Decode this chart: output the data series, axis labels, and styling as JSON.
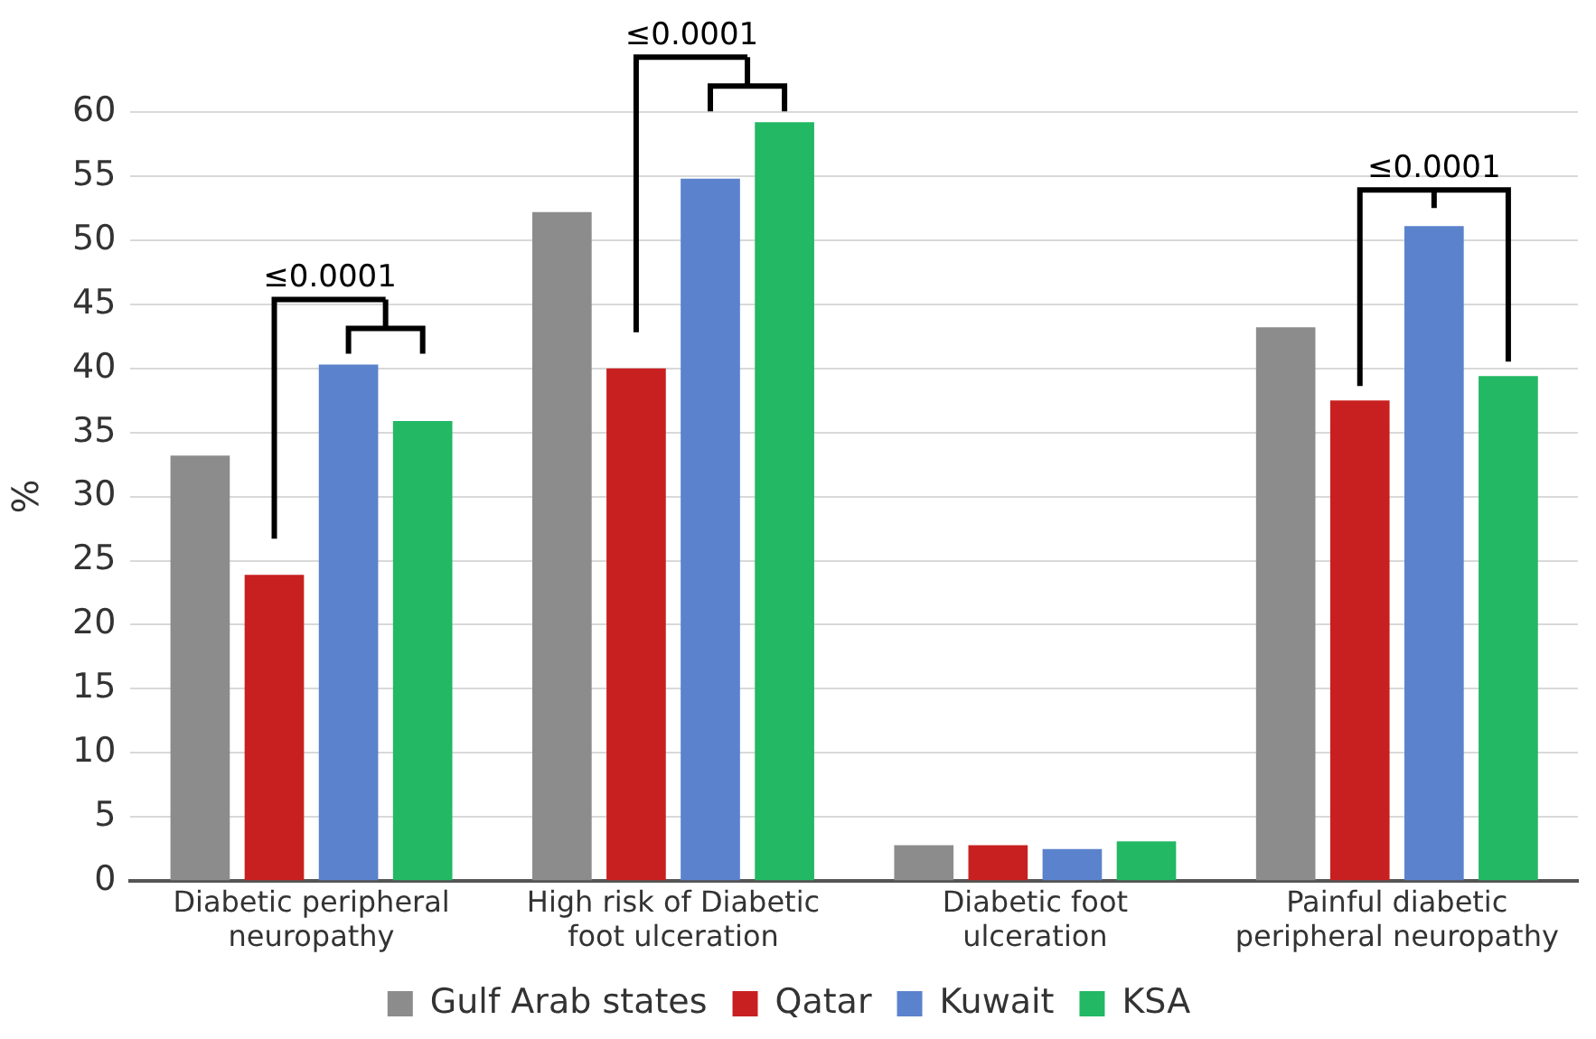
{
  "chart_data": {
    "type": "bar",
    "ylabel": "%",
    "categories": [
      "Diabetic peripheral neuropathy",
      "High risk of Diabetic foot ulceration",
      "Diabetic foot ulceration",
      "Painful diabetic peripheral neuropathy"
    ],
    "series": [
      {
        "name": "Gulf Arab states",
        "color": "#8c8c8c",
        "values": [
          33.2,
          52.2,
          2.8,
          43.2
        ]
      },
      {
        "name": "Qatar",
        "color": "#c82020",
        "values": [
          23.9,
          40.0,
          2.8,
          37.5
        ]
      },
      {
        "name": "Kuwait",
        "color": "#5b82cc",
        "values": [
          40.3,
          54.8,
          2.5,
          51.1
        ]
      },
      {
        "name": "KSA",
        "color": "#22b864",
        "values": [
          35.9,
          59.2,
          3.1,
          39.4
        ]
      }
    ],
    "ylim": [
      0,
      60
    ],
    "yticks": [
      0,
      5,
      10,
      15,
      20,
      25,
      30,
      35,
      40,
      45,
      50,
      55,
      60
    ],
    "grid": "y",
    "legend": "bottom",
    "annotations": [
      "≤0.0001",
      "≤0.0001",
      "≤0.0001"
    ]
  }
}
